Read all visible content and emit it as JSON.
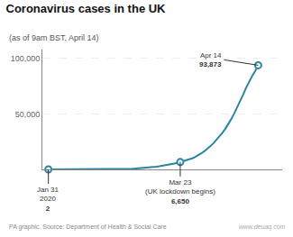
{
  "chart_data": {
    "type": "line",
    "title": "Coronavirus cases in the UK",
    "subtitle": "(as of 9am BST, April 14)",
    "source": "PA graphic. Source: Department of Health & Social Care",
    "watermark": "www.deuaq.com",
    "color": "#2b85a0",
    "x": [
      0,
      1,
      2,
      3,
      4,
      5,
      6,
      7,
      8,
      9,
      10,
      11,
      12,
      13,
      14,
      15,
      16,
      17,
      18,
      19,
      20,
      21,
      22,
      23,
      24,
      25,
      26,
      27,
      28,
      29,
      30,
      31,
      32,
      33,
      34,
      35,
      36,
      37,
      38,
      39,
      40,
      41,
      42,
      43,
      44,
      45,
      46,
      47,
      48,
      49,
      50,
      51,
      52,
      53,
      54,
      55,
      56,
      57,
      58,
      59,
      60,
      61,
      62,
      63,
      64,
      65,
      66,
      67,
      68,
      69,
      70
    ],
    "values": [
      2,
      2,
      3,
      3,
      4,
      4,
      5,
      6,
      8,
      9,
      13,
      15,
      19,
      23,
      28,
      35,
      43,
      51,
      62,
      78,
      97,
      121,
      156,
      199,
      250,
      312,
      391,
      484,
      600,
      734,
      891,
      1072,
      1273,
      1497,
      1753,
      2052,
      2390,
      2766,
      3186,
      3651,
      4163,
      4718,
      5316,
      5954,
      6650,
      7321,
      8077,
      8893,
      9987,
      11327,
      12750,
      14449,
      16321,
      18436,
      20819,
      23464,
      26386,
      29432,
      32745,
      36473,
      40684,
      45359,
      50453,
      55951,
      61478,
      67442,
      73845,
      79745,
      84279,
      88621,
      93873
    ],
    "xlim": [
      -2,
      78
    ],
    "xticks": [],
    "ylim": [
      0,
      108000
    ],
    "yticks": [
      {
        "value": 50000,
        "label": "50,000"
      },
      {
        "value": 100000,
        "label": "100,000"
      }
    ],
    "grid": true,
    "tick_labels": "y",
    "annotations": [
      {
        "x": 0,
        "y": 2,
        "text": "Jan 31\n2020",
        "label": "2"
      },
      {
        "x": 44,
        "y": 6650,
        "text": "Mar 23\n(UK lockdown begins)",
        "label": "6,650"
      },
      {
        "x": 70,
        "y": 93873,
        "text": "Apr 14",
        "label": "93,873"
      }
    ]
  }
}
